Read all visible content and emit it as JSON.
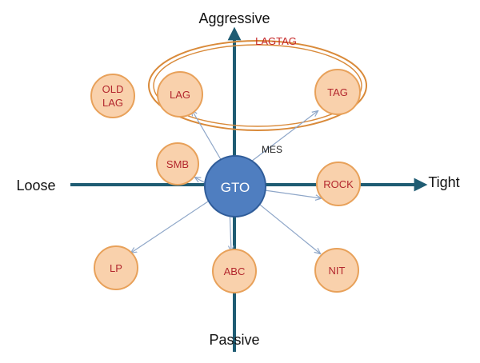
{
  "axes": {
    "top": "Aggressive",
    "bottom": "Passive",
    "left": "Loose",
    "right": "Tight"
  },
  "center": {
    "label": "GTO"
  },
  "nodes": {
    "old_lag": {
      "line1": "OLD",
      "line2": "LAG"
    },
    "lag": "LAG",
    "tag": "TAG",
    "smb": "SMB",
    "rock": "ROCK",
    "lp": "LP",
    "abc": "ABC",
    "nit": "NIT"
  },
  "group_label": "LAGTAG",
  "mes_label": "MES",
  "colors": {
    "axis": "#1f5c73",
    "node_fill": "#f9d1ac",
    "node_stroke": "#e8a15a",
    "node_text": "#b3272e",
    "center_fill": "#4f7ec0",
    "center_stroke": "#2f5c99",
    "group_ellipse": "#d98a3a",
    "group_text": "#c62828",
    "connector": "#8ea6c8"
  }
}
